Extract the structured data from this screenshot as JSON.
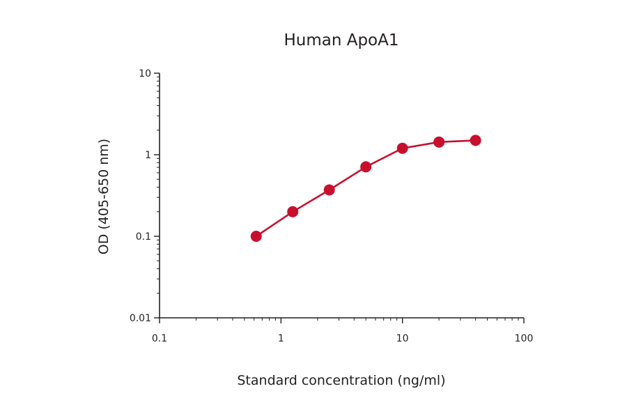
{
  "chart_data": {
    "type": "line",
    "title": "Human ApoA1",
    "xlabel": "Standard concentration (ng/ml)",
    "ylabel": "OD (405-650 nm)",
    "xscale": "log",
    "yscale": "log",
    "xlim": [
      0.1,
      100
    ],
    "ylim": [
      0.01,
      10
    ],
    "xticks": [
      "0.1",
      "1",
      "10",
      "100"
    ],
    "yticks": [
      "0.01",
      "0.1",
      "1",
      "10"
    ],
    "grid": false,
    "series": [
      {
        "color": "#c8102e",
        "x": [
          0.625,
          1.25,
          2.5,
          5,
          10,
          20,
          40
        ],
        "y": [
          0.1,
          0.2,
          0.37,
          0.71,
          1.2,
          1.43,
          1.5
        ]
      }
    ]
  }
}
